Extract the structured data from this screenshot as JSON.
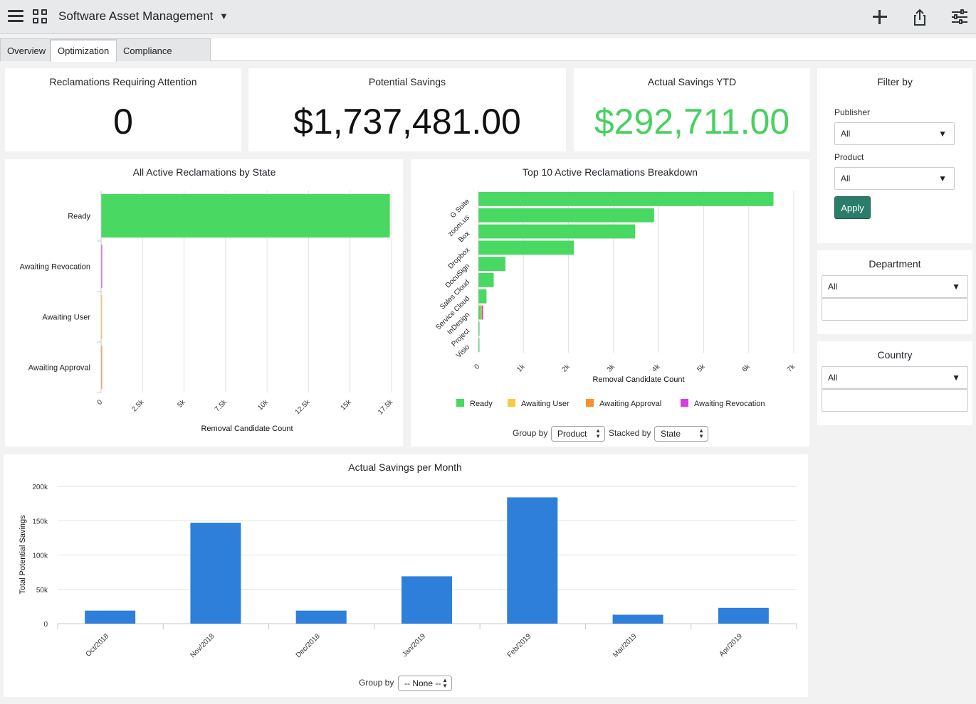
{
  "header": {
    "title": "Software Asset Management",
    "icons": [
      "hamburger-menu-icon",
      "app-grid-icon",
      "dropdown-caret-icon",
      "plus-icon",
      "share-icon",
      "sliders-icon"
    ]
  },
  "tabs": [
    {
      "label": "Overview",
      "active": false
    },
    {
      "label": "Optimization",
      "active": true
    },
    {
      "label": "Compliance Analysis",
      "active": false
    }
  ],
  "kpis": {
    "reclamations": {
      "title": "Reclamations Requiring Attention",
      "value": "0"
    },
    "potential": {
      "title": "Potential Savings",
      "value": "$1,737,481.00"
    },
    "actual": {
      "title": "Actual Savings YTD",
      "value": "$292,711.00",
      "color": "#49d061"
    }
  },
  "filter": {
    "title": "Filter by",
    "publisher_label": "Publisher",
    "publisher_value": "All",
    "product_label": "Product",
    "product_value": "All",
    "apply_label": "Apply",
    "department_title": "Department",
    "department_value": "All",
    "country_title": "Country",
    "country_value": "All"
  },
  "colors": {
    "ready": "#49d861",
    "awaiting_user": "#f7c948",
    "awaiting_approval": "#f5922f",
    "awaiting_revocation": "#d63ee0",
    "savings_bar": "#2e7fd9"
  },
  "chart_data": [
    {
      "type": "bar",
      "orientation": "horizontal",
      "title": "All Active Reclamations by State",
      "xlabel": "Removal Candidate Count",
      "categories": [
        "Ready",
        "Awaiting Revocation",
        "Awaiting User",
        "Awaiting Approval"
      ],
      "values": [
        17400,
        40,
        30,
        30
      ],
      "xlim": [
        0,
        17500
      ],
      "ticks": [
        0,
        2500,
        5000,
        7500,
        10000,
        12500,
        15000,
        17500
      ],
      "tick_labels": [
        "0",
        "2.5k",
        "5k",
        "7.5k",
        "10k",
        "12.5k",
        "15k",
        "17.5k"
      ],
      "grid": true
    },
    {
      "type": "bar",
      "orientation": "horizontal",
      "stacked": true,
      "title": "Top 10 Active Reclamations Breakdown",
      "xlabel": "Removal Candidate Count",
      "categories": [
        "G Suite",
        "zoom.us",
        "Box",
        "Dropbox",
        "DocuSign",
        "Sales Cloud",
        "Service Cloud",
        "InDesign",
        "Project",
        "Visio"
      ],
      "series": [
        {
          "name": "Ready",
          "values": [
            6550,
            3900,
            3480,
            2120,
            600,
            340,
            180,
            60,
            25,
            15
          ]
        },
        {
          "name": "Awaiting User",
          "values": [
            0,
            0,
            0,
            0,
            0,
            0,
            0,
            10,
            0,
            0
          ]
        },
        {
          "name": "Awaiting Approval",
          "values": [
            0,
            0,
            0,
            0,
            0,
            0,
            0,
            10,
            0,
            0
          ]
        },
        {
          "name": "Awaiting Revocation",
          "values": [
            0,
            0,
            0,
            0,
            0,
            0,
            0,
            25,
            0,
            0
          ]
        }
      ],
      "xlim": [
        0,
        7000
      ],
      "ticks": [
        0,
        1000,
        2000,
        3000,
        4000,
        5000,
        6000,
        7000
      ],
      "tick_labels": [
        "0",
        "1k",
        "2k",
        "3k",
        "4k",
        "5k",
        "6k",
        "7k"
      ],
      "legend": [
        "Ready",
        "Awaiting User",
        "Awaiting Approval",
        "Awaiting Revocation"
      ],
      "legend_position": "bottom",
      "grid": true,
      "controls": {
        "group_by_label": "Group by",
        "group_by_value": "Product",
        "stacked_by_label": "Stacked by",
        "stacked_by_value": "State"
      }
    },
    {
      "type": "bar",
      "title": "Actual Savings per Month",
      "ylabel": "Total Potential Savings",
      "categories": [
        "Oct/2018",
        "Nov/2018",
        "Dec/2018",
        "Jan/2019",
        "Feb/2019",
        "Mar/2019",
        "Apr/2019"
      ],
      "values": [
        19000,
        147000,
        19000,
        69000,
        184000,
        13000,
        23000
      ],
      "ylim": [
        0,
        200000
      ],
      "ticks": [
        0,
        50000,
        100000,
        150000,
        200000
      ],
      "tick_labels": [
        "0",
        "50k",
        "100k",
        "150k",
        "200k"
      ],
      "grid": true,
      "controls": {
        "group_by_label": "Group by",
        "group_by_value": "-- None --"
      }
    }
  ]
}
